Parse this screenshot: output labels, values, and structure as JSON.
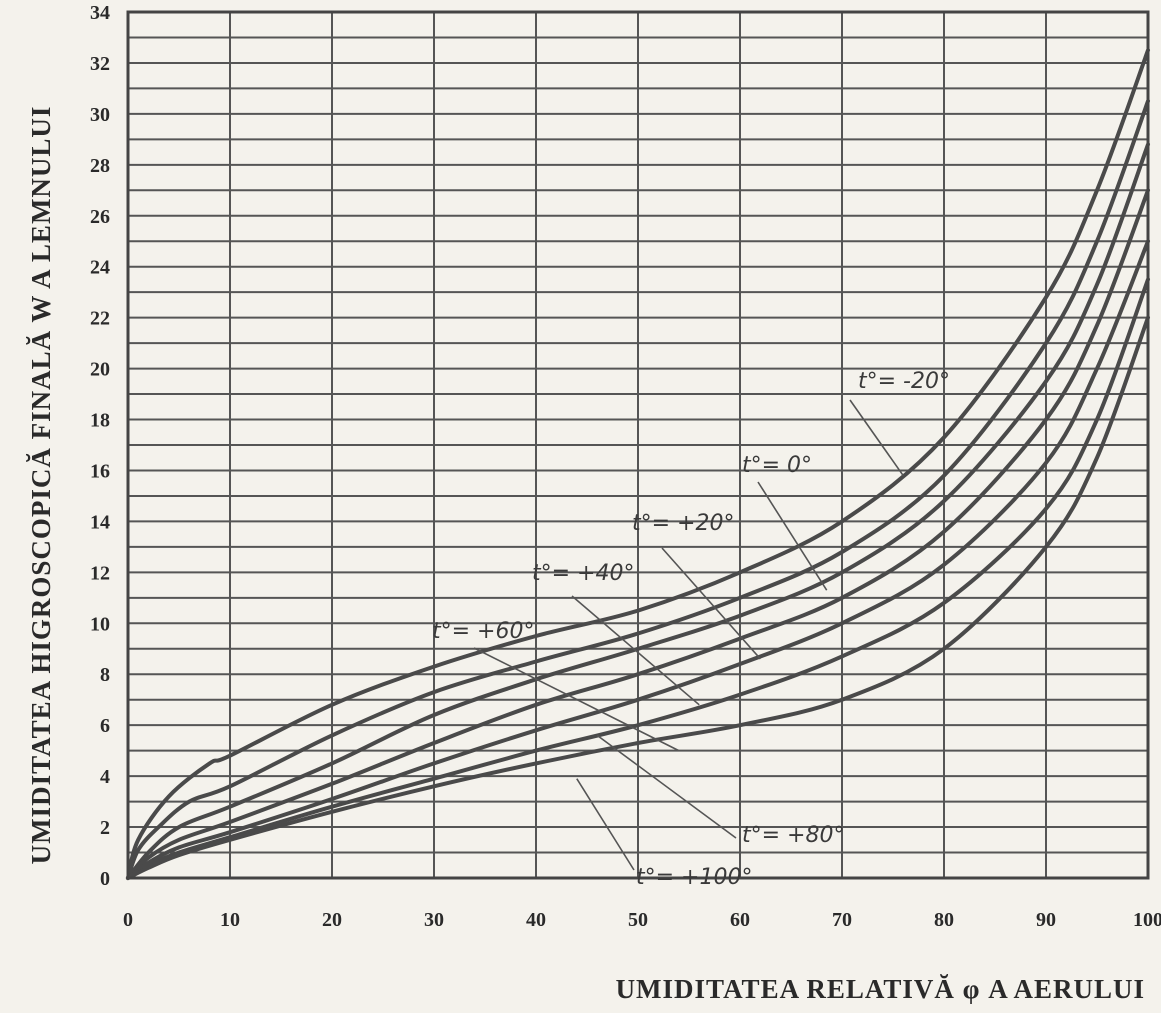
{
  "chart_data": {
    "type": "line",
    "title": "",
    "xlabel": "UMIDITATEA RELATIVĂ φ A AERULUI",
    "ylabel": "UMIDITATEA HIGROSCOPICĂ FINALĂ W A LEMNULUI",
    "xlim": [
      0,
      100
    ],
    "ylim": [
      0,
      34
    ],
    "x_ticks": [
      "0",
      "10",
      "20",
      "30",
      "40",
      "50",
      "60",
      "70",
      "80",
      "90",
      "100"
    ],
    "y_ticks": [
      "0",
      "2",
      "4",
      "6",
      "8",
      "10",
      "12",
      "14",
      "16",
      "18",
      "20",
      "22",
      "24",
      "26",
      "28",
      "30",
      "32",
      "34"
    ],
    "grid": true,
    "legend": "inline labels",
    "series": [
      {
        "name": "t°= -20°",
        "points": [
          [
            0,
            0
          ],
          [
            1,
            1.5
          ],
          [
            4,
            3.2
          ],
          [
            8,
            4.5
          ],
          [
            10,
            4.8
          ],
          [
            20,
            6.8
          ],
          [
            30,
            8.3
          ],
          [
            40,
            9.5
          ],
          [
            50,
            10.5
          ],
          [
            60,
            12.0
          ],
          [
            70,
            14.0
          ],
          [
            80,
            17.3
          ],
          [
            90,
            22.8
          ],
          [
            95,
            27.0
          ],
          [
            100,
            32.5
          ]
        ]
      },
      {
        "name": "t°= 0°",
        "points": [
          [
            0,
            0
          ],
          [
            1,
            1.1
          ],
          [
            3,
            2.0
          ],
          [
            6,
            3.0
          ],
          [
            10,
            3.6
          ],
          [
            20,
            5.6
          ],
          [
            30,
            7.3
          ],
          [
            40,
            8.5
          ],
          [
            50,
            9.6
          ],
          [
            60,
            11.0
          ],
          [
            70,
            12.8
          ],
          [
            80,
            15.8
          ],
          [
            90,
            21.0
          ],
          [
            95,
            25.0
          ],
          [
            100,
            30.5
          ]
        ]
      },
      {
        "name": "t°= +20°",
        "points": [
          [
            0,
            0
          ],
          [
            2,
            1.0
          ],
          [
            5,
            2.0
          ],
          [
            10,
            2.8
          ],
          [
            20,
            4.5
          ],
          [
            30,
            6.4
          ],
          [
            40,
            7.8
          ],
          [
            50,
            9.0
          ],
          [
            60,
            10.3
          ],
          [
            70,
            12.0
          ],
          [
            80,
            14.8
          ],
          [
            90,
            19.5
          ],
          [
            95,
            23.3
          ],
          [
            100,
            28.8
          ]
        ]
      },
      {
        "name": "t°= +40°",
        "points": [
          [
            0,
            0
          ],
          [
            2,
            0.8
          ],
          [
            5,
            1.5
          ],
          [
            10,
            2.2
          ],
          [
            20,
            3.7
          ],
          [
            30,
            5.3
          ],
          [
            40,
            6.8
          ],
          [
            50,
            8.0
          ],
          [
            60,
            9.4
          ],
          [
            70,
            11.0
          ],
          [
            80,
            13.6
          ],
          [
            90,
            18.0
          ],
          [
            95,
            21.7
          ],
          [
            100,
            27.0
          ]
        ]
      },
      {
        "name": "t°= +60°",
        "points": [
          [
            0,
            0
          ],
          [
            2,
            0.6
          ],
          [
            5,
            1.2
          ],
          [
            10,
            1.8
          ],
          [
            20,
            3.1
          ],
          [
            30,
            4.5
          ],
          [
            40,
            5.8
          ],
          [
            50,
            7.0
          ],
          [
            60,
            8.4
          ],
          [
            70,
            10.0
          ],
          [
            80,
            12.3
          ],
          [
            90,
            16.3
          ],
          [
            95,
            20.0
          ],
          [
            100,
            25.0
          ]
        ]
      },
      {
        "name": "t°= +80°",
        "points": [
          [
            0,
            0
          ],
          [
            2,
            0.5
          ],
          [
            5,
            1.0
          ],
          [
            10,
            1.6
          ],
          [
            20,
            2.8
          ],
          [
            30,
            3.9
          ],
          [
            40,
            5.0
          ],
          [
            50,
            6.0
          ],
          [
            60,
            7.2
          ],
          [
            70,
            8.7
          ],
          [
            80,
            10.8
          ],
          [
            90,
            14.5
          ],
          [
            95,
            18.0
          ],
          [
            100,
            23.5
          ]
        ]
      },
      {
        "name": "t°= +100°",
        "points": [
          [
            0,
            0
          ],
          [
            2,
            0.4
          ],
          [
            5,
            0.9
          ],
          [
            10,
            1.5
          ],
          [
            20,
            2.6
          ],
          [
            30,
            3.6
          ],
          [
            40,
            4.5
          ],
          [
            50,
            5.3
          ],
          [
            60,
            6.0
          ],
          [
            70,
            7.0
          ],
          [
            80,
            9.0
          ],
          [
            90,
            13.0
          ],
          [
            95,
            16.5
          ],
          [
            100,
            22.0
          ]
        ]
      }
    ]
  }
}
